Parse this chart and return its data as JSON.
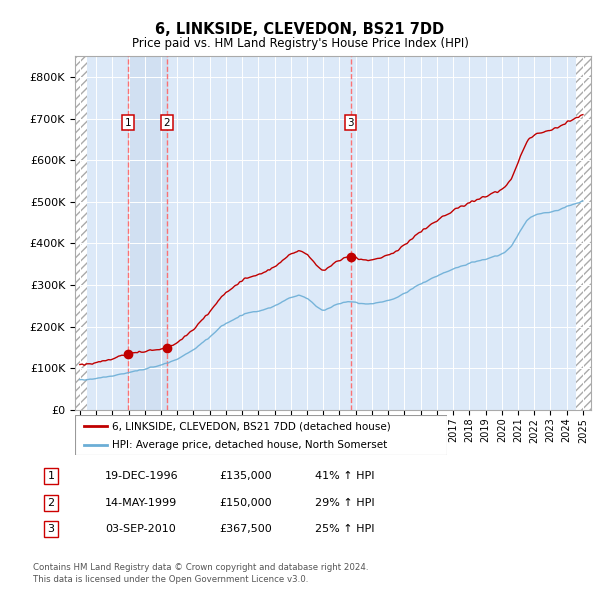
{
  "title": "6, LINKSIDE, CLEVEDON, BS21 7DD",
  "subtitle": "Price paid vs. HM Land Registry's House Price Index (HPI)",
  "footer_line1": "Contains HM Land Registry data © Crown copyright and database right 2024.",
  "footer_line2": "This data is licensed under the Open Government Licence v3.0.",
  "legend_label1": "6, LINKSIDE, CLEVEDON, BS21 7DD (detached house)",
  "legend_label2": "HPI: Average price, detached house, North Somerset",
  "transactions": [
    {
      "num": 1,
      "date": "19-DEC-1996",
      "price": 135000,
      "pct": "41%",
      "dir": "↑"
    },
    {
      "num": 2,
      "date": "14-MAY-1999",
      "price": 150000,
      "pct": "29%",
      "dir": "↑"
    },
    {
      "num": 3,
      "date": "03-SEP-2010",
      "price": 367500,
      "pct": "25%",
      "dir": "↑"
    }
  ],
  "transaction_dates_decimal": [
    1996.97,
    1999.37,
    2010.68
  ],
  "transaction_prices": [
    135000,
    150000,
    367500
  ],
  "hpi_color": "#6baed6",
  "price_color": "#c00000",
  "vline_color": "#ff6666",
  "marker_color": "#c00000",
  "box_color": "#cc0000",
  "background_plot": "#dce9f8",
  "ylim": [
    0,
    850000
  ],
  "yticks": [
    0,
    100000,
    200000,
    300000,
    400000,
    500000,
    600000,
    700000,
    800000
  ],
  "ytick_labels": [
    "£0",
    "£100K",
    "£200K",
    "£300K",
    "£400K",
    "£500K",
    "£600K",
    "£700K",
    "£800K"
  ],
  "xlim_start": 1993.7,
  "xlim_end": 2025.5,
  "hatch_end": 1994.42,
  "hatch_start_right": 2024.58
}
